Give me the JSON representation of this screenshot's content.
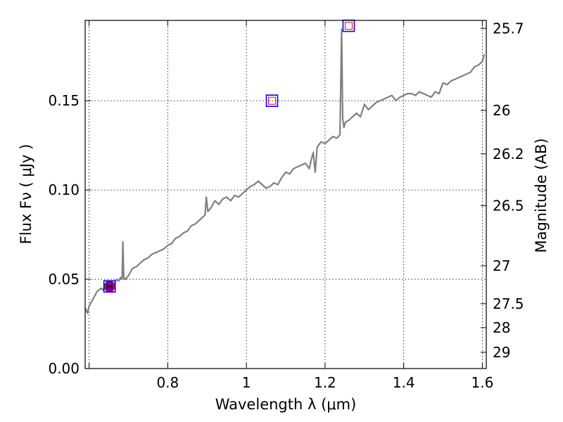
{
  "chart_data": {
    "type": "line",
    "xlabel": "Wavelength  λ (μm)",
    "ylabel": "Flux  Fν  ( μJy )",
    "y2label": "Magnitude (AB)",
    "xlim": [
      0.59,
      1.61
    ],
    "ylim": [
      0.0,
      0.195
    ],
    "grid": true,
    "x_ticks": [
      {
        "value": 0.6,
        "label": ""
      },
      {
        "value": 0.8,
        "label": "0.8"
      },
      {
        "value": 1.0,
        "label": "1"
      },
      {
        "value": 1.2,
        "label": "1.2"
      },
      {
        "value": 1.4,
        "label": "1.4"
      },
      {
        "value": 1.6,
        "label": "1.6"
      }
    ],
    "y_ticks": [
      {
        "value": 0.0,
        "label": "0.00"
      },
      {
        "value": 0.05,
        "label": "0.05"
      },
      {
        "value": 0.1,
        "label": "0.10"
      },
      {
        "value": 0.15,
        "label": "0.15"
      }
    ],
    "y2_ticks": [
      {
        "value": 25.7,
        "label": "25.7"
      },
      {
        "value": 26.0,
        "label": "26"
      },
      {
        "value": 26.2,
        "label": "26.2"
      },
      {
        "value": 26.5,
        "label": "26.5"
      },
      {
        "value": 27.0,
        "label": "27"
      },
      {
        "value": 27.5,
        "label": "27.5"
      },
      {
        "value": 28.0,
        "label": "28"
      },
      {
        "value": 29.0,
        "label": "29"
      }
    ],
    "series": [
      {
        "color": "#808080",
        "x": [
          0.59,
          0.596,
          0.6,
          0.605,
          0.61,
          0.615,
          0.62,
          0.625,
          0.63,
          0.635,
          0.64,
          0.645,
          0.65,
          0.655,
          0.66,
          0.665,
          0.67,
          0.675,
          0.68,
          0.684,
          0.686,
          0.688,
          0.692,
          0.7,
          0.71,
          0.72,
          0.73,
          0.74,
          0.75,
          0.76,
          0.77,
          0.78,
          0.79,
          0.8,
          0.81,
          0.82,
          0.83,
          0.84,
          0.85,
          0.86,
          0.87,
          0.88,
          0.89,
          0.895,
          0.898,
          0.902,
          0.906,
          0.91,
          0.92,
          0.93,
          0.94,
          0.95,
          0.96,
          0.97,
          0.98,
          0.99,
          1.0,
          1.01,
          1.02,
          1.03,
          1.04,
          1.05,
          1.06,
          1.07,
          1.08,
          1.09,
          1.1,
          1.11,
          1.12,
          1.13,
          1.14,
          1.15,
          1.16,
          1.165,
          1.17,
          1.175,
          1.18,
          1.19,
          1.2,
          1.21,
          1.22,
          1.23,
          1.238,
          1.242,
          1.245,
          1.248,
          1.252,
          1.26,
          1.27,
          1.28,
          1.29,
          1.3,
          1.31,
          1.32,
          1.33,
          1.34,
          1.35,
          1.36,
          1.37,
          1.38,
          1.39,
          1.4,
          1.41,
          1.42,
          1.43,
          1.44,
          1.45,
          1.46,
          1.47,
          1.48,
          1.49,
          1.5,
          1.51,
          1.52,
          1.53,
          1.54,
          1.55,
          1.56,
          1.57,
          1.58,
          1.59,
          1.6,
          1.605
        ],
        "y": [
          0.034,
          0.031,
          0.035,
          0.037,
          0.039,
          0.041,
          0.043,
          0.044,
          0.045,
          0.044,
          0.046,
          0.045,
          0.044,
          0.047,
          0.046,
          0.048,
          0.05,
          0.049,
          0.051,
          0.05,
          0.071,
          0.051,
          0.05,
          0.052,
          0.056,
          0.057,
          0.059,
          0.061,
          0.062,
          0.064,
          0.065,
          0.066,
          0.067,
          0.069,
          0.07,
          0.073,
          0.074,
          0.076,
          0.077,
          0.08,
          0.081,
          0.083,
          0.085,
          0.086,
          0.096,
          0.088,
          0.089,
          0.09,
          0.094,
          0.092,
          0.095,
          0.096,
          0.094,
          0.097,
          0.096,
          0.098,
          0.1,
          0.102,
          0.103,
          0.105,
          0.103,
          0.101,
          0.102,
          0.104,
          0.103,
          0.107,
          0.11,
          0.109,
          0.112,
          0.113,
          0.114,
          0.115,
          0.112,
          0.117,
          0.121,
          0.11,
          0.124,
          0.127,
          0.126,
          0.128,
          0.13,
          0.129,
          0.131,
          0.19,
          0.14,
          0.135,
          0.138,
          0.139,
          0.141,
          0.143,
          0.141,
          0.148,
          0.145,
          0.147,
          0.149,
          0.15,
          0.151,
          0.152,
          0.153,
          0.15,
          0.152,
          0.153,
          0.154,
          0.154,
          0.153,
          0.155,
          0.154,
          0.153,
          0.152,
          0.155,
          0.154,
          0.16,
          0.159,
          0.161,
          0.162,
          0.163,
          0.164,
          0.165,
          0.166,
          0.169,
          0.17,
          0.172,
          0.176
        ]
      }
    ],
    "photometry": [
      {
        "x": 0.652,
        "y": 0.046,
        "xerr": 0.006,
        "yerr": 0.003
      }
    ],
    "model_points": [
      {
        "x": 0.652,
        "y": 0.046
      },
      {
        "x": 1.065,
        "y": 0.15
      },
      {
        "x": 1.26,
        "y": 0.192
      }
    ],
    "colors": {
      "spectrum": "#808080",
      "photometry_fill": "#9400d3",
      "photometry_edge": "#000000",
      "model_outer": "#0000ff",
      "model_inner": "#ff0000",
      "grid": "#000000"
    }
  }
}
